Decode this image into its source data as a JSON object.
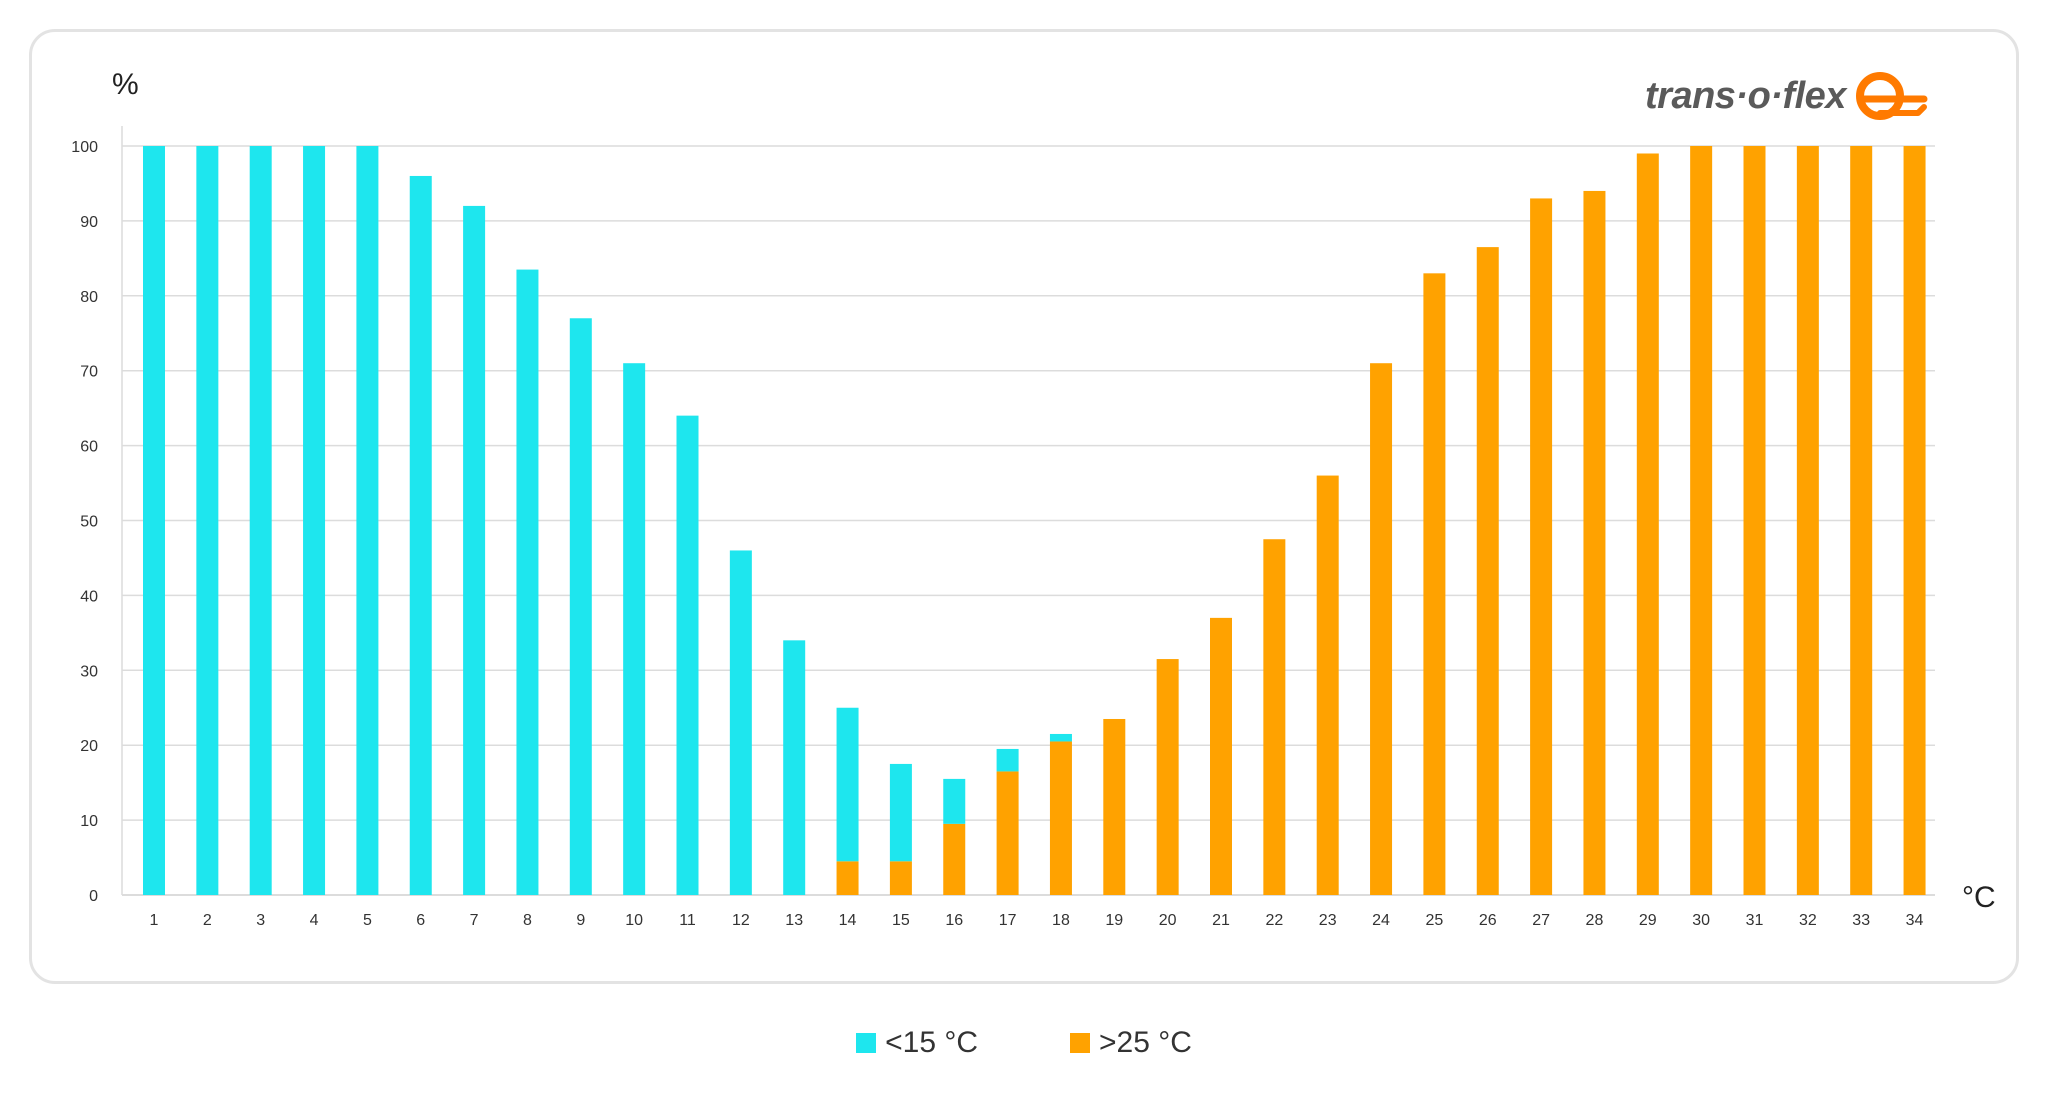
{
  "colors": {
    "cold": "#1ee6ee",
    "warm": "#ffa200",
    "grid": "#dcdcdc",
    "card_border": "#e3e3e3"
  },
  "logo": {
    "text": "trans·o·flex",
    "icon": "trans-o-flex-swirl-icon"
  },
  "legend": [
    {
      "label": "<15 °C",
      "color": "#1ee6ee"
    },
    {
      "label": ">25 °C",
      "color": "#ffa200"
    }
  ],
  "chart_data": {
    "type": "bar",
    "stacked": true,
    "ylabel": "%",
    "xlabel": "°C",
    "ylim": [
      0,
      100
    ],
    "yticks": [
      0,
      10,
      20,
      30,
      40,
      50,
      60,
      70,
      80,
      90,
      100
    ],
    "grid": true,
    "legend_position": "bottom-center",
    "categories": [
      "1",
      "2",
      "3",
      "4",
      "5",
      "6",
      "7",
      "8",
      "9",
      "10",
      "11",
      "12",
      "13",
      "14",
      "15",
      "16",
      "17",
      "18",
      "19",
      "20",
      "21",
      "22",
      "23",
      "24",
      "25",
      "26",
      "27",
      "28",
      "29",
      "30",
      "31",
      "32",
      "33",
      "34"
    ],
    "series": [
      {
        "name": ">25 °C",
        "color": "#ffa200",
        "values": [
          0,
          0,
          0,
          0,
          0,
          0,
          0,
          0,
          0,
          0,
          0,
          0,
          0,
          4.5,
          4.5,
          9.5,
          16.5,
          20.5,
          23.5,
          31.5,
          37,
          47.5,
          56,
          71,
          83,
          86.5,
          93,
          94,
          99,
          100,
          100,
          100,
          100,
          100
        ]
      },
      {
        "name": "<15 °C",
        "color": "#1ee6ee",
        "values": [
          100,
          100,
          100,
          100,
          100,
          96,
          92,
          83.5,
          77,
          71,
          64,
          46,
          34,
          20.5,
          13,
          6,
          3,
          1,
          0,
          0,
          0,
          0,
          0,
          0,
          0,
          0,
          0,
          0,
          0,
          0,
          0,
          0,
          0,
          0
        ]
      }
    ]
  }
}
